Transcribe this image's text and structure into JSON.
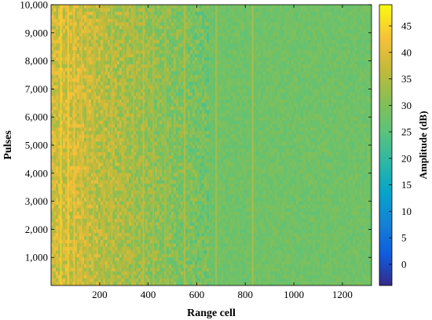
{
  "chart_data": {
    "type": "heatmap",
    "title": "",
    "xlabel": "Range cell",
    "ylabel": "Pulses",
    "xlim": [
      0,
      1320
    ],
    "ylim": [
      0,
      10000
    ],
    "x_ticks": [
      200,
      400,
      600,
      800,
      1000,
      1200
    ],
    "x_tick_labels": [
      "200",
      "400",
      "600",
      "800",
      "1000",
      "1200"
    ],
    "y_ticks": [
      1000,
      2000,
      3000,
      4000,
      5000,
      6000,
      7000,
      8000,
      9000,
      10000
    ],
    "y_tick_labels": [
      "1,000",
      "2,000",
      "3,000",
      "4,000",
      "5,000",
      "6,000",
      "7,000",
      "8,000",
      "9,000",
      "10,000"
    ],
    "colorbar": {
      "label": "Amplitude (dB)",
      "range": [
        -4,
        49
      ],
      "ticks": [
        0,
        5,
        10,
        15,
        20,
        25,
        30,
        35,
        40,
        45
      ],
      "tick_labels": [
        "0",
        "5",
        "10",
        "15",
        "20",
        "25",
        "30",
        "35",
        "40",
        "45"
      ],
      "colormap": "parula"
    },
    "background_level_db": 28,
    "near_range_clutter": {
      "range_cells": [
        0,
        120
      ],
      "level_db": 38
    },
    "clutter_decay_range_cells": [
      120,
      650
    ],
    "streaks": [
      {
        "range_cell": 40,
        "level_db": 45
      },
      {
        "range_cell": 70,
        "level_db": 44
      },
      {
        "range_cell": 95,
        "level_db": 43
      },
      {
        "range_cell": 125,
        "level_db": 40
      },
      {
        "range_cell": 150,
        "level_db": 39
      },
      {
        "range_cell": 175,
        "level_db": 38
      },
      {
        "range_cell": 215,
        "level_db": 37
      },
      {
        "range_cell": 250,
        "level_db": 38
      },
      {
        "range_cell": 300,
        "level_db": 36
      },
      {
        "range_cell": 340,
        "level_db": 36
      },
      {
        "range_cell": 380,
        "level_db": 38
      },
      {
        "range_cell": 420,
        "level_db": 35
      },
      {
        "range_cell": 470,
        "level_db": 34
      },
      {
        "range_cell": 550,
        "level_db": 36
      },
      {
        "range_cell": 680,
        "level_db": 35
      },
      {
        "range_cell": 830,
        "level_db": 36
      }
    ]
  }
}
